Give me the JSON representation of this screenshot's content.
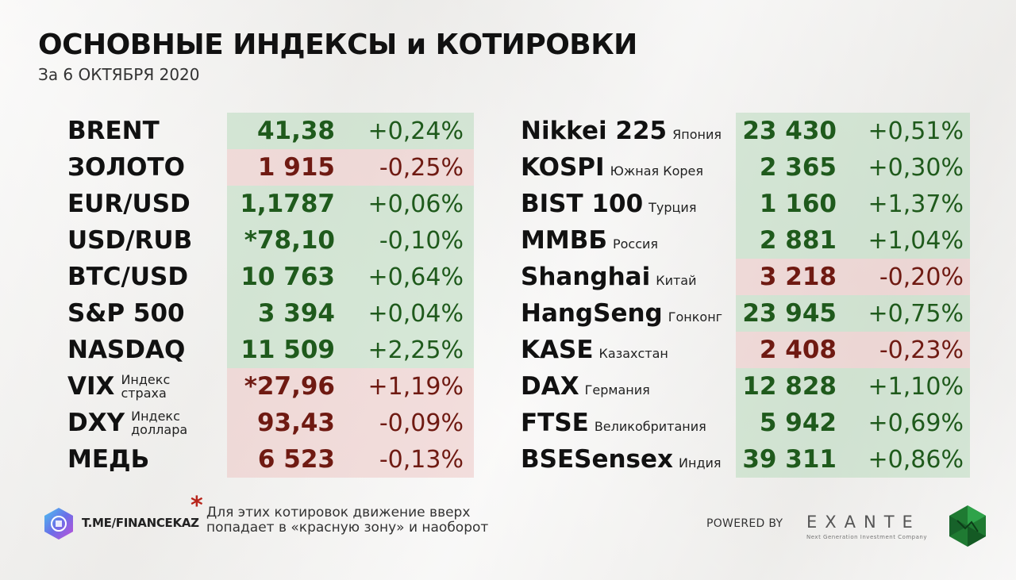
{
  "header": {
    "title": "ОСНОВНЫЕ ИНДЕКСЫ и КОТИРОВКИ",
    "subtitle": "За 6 ОКТЯБРЯ 2020"
  },
  "left_table": [
    {
      "name": "BRENT",
      "note": "",
      "value": "41,38",
      "change": "+0,24%",
      "trend": "up"
    },
    {
      "name": "ЗОЛОТО",
      "note": "",
      "value": "1 915",
      "change": "-0,25%",
      "trend": "down"
    },
    {
      "name": "EUR/USD",
      "note": "",
      "value": "1,1787",
      "change": "+0,06%",
      "trend": "up"
    },
    {
      "name": "USD/RUB",
      "note": "",
      "value": "*78,10",
      "change": "-0,10%",
      "trend": "up"
    },
    {
      "name": "BTC/USD",
      "note": "",
      "value": "10 763",
      "change": "+0,64%",
      "trend": "up"
    },
    {
      "name": "S&P 500",
      "note": "",
      "value": "3 394",
      "change": "+0,04%",
      "trend": "up"
    },
    {
      "name": "NASDAQ",
      "note": "",
      "value": "11 509",
      "change": "+2,25%",
      "trend": "up"
    },
    {
      "name": "VIX",
      "note": "Индекс страха",
      "value": "*27,96",
      "change": "+1,19%",
      "trend": "down"
    },
    {
      "name": "DXY",
      "note": "Индекс доллара",
      "value": "93,43",
      "change": "-0,09%",
      "trend": "down"
    },
    {
      "name": "МЕДЬ",
      "note": "",
      "value": "6 523",
      "change": "-0,13%",
      "trend": "down"
    }
  ],
  "right_table": [
    {
      "name": "Nikkei 225",
      "note": "Япония",
      "value": "23 430",
      "change": "+0,51%",
      "trend": "up"
    },
    {
      "name": "KOSPI",
      "note": "Южная Корея",
      "value": "2 365",
      "change": "+0,30%",
      "trend": "up"
    },
    {
      "name": "BIST 100",
      "note": "Турция",
      "value": "1 160",
      "change": "+1,37%",
      "trend": "up"
    },
    {
      "name": "ММВБ",
      "note": "Россия",
      "value": "2 881",
      "change": "+1,04%",
      "trend": "up"
    },
    {
      "name": "Shanghai",
      "note": "Китай",
      "value": "3 218",
      "change": "-0,20%",
      "trend": "down"
    },
    {
      "name": "HangSeng",
      "note": "Гонконг",
      "value": "23 945",
      "change": "+0,75%",
      "trend": "up"
    },
    {
      "name": "KASE",
      "note": "Казахстан",
      "value": "2 408",
      "change": "-0,23%",
      "trend": "down"
    },
    {
      "name": "DAX",
      "note": "Германия",
      "value": "12 828",
      "change": "+1,10%",
      "trend": "up"
    },
    {
      "name": "FTSE",
      "note": "Великобритания",
      "value": "5 942",
      "change": "+0,69%",
      "trend": "up"
    },
    {
      "name": "BSESensex",
      "note": "Индия",
      "value": "39 311",
      "change": "+0,86%",
      "trend": "up"
    }
  ],
  "footer": {
    "channel": "T.ME/FINANCEKAZ",
    "footnote_mark": "*",
    "footnote": "Для этих котировок движение вверх попадает в «красную зону» и наоборот",
    "powered_by": "POWERED BY",
    "brand": "EXANTE",
    "brand_tagline": "Next Generation Investment Company"
  },
  "colors": {
    "up_text": "#1f5a1c",
    "down_text": "#6f1a12",
    "green_zone": "#badbbe",
    "red_zone": "#ecc7c4",
    "footnote_star": "#b8241a"
  }
}
